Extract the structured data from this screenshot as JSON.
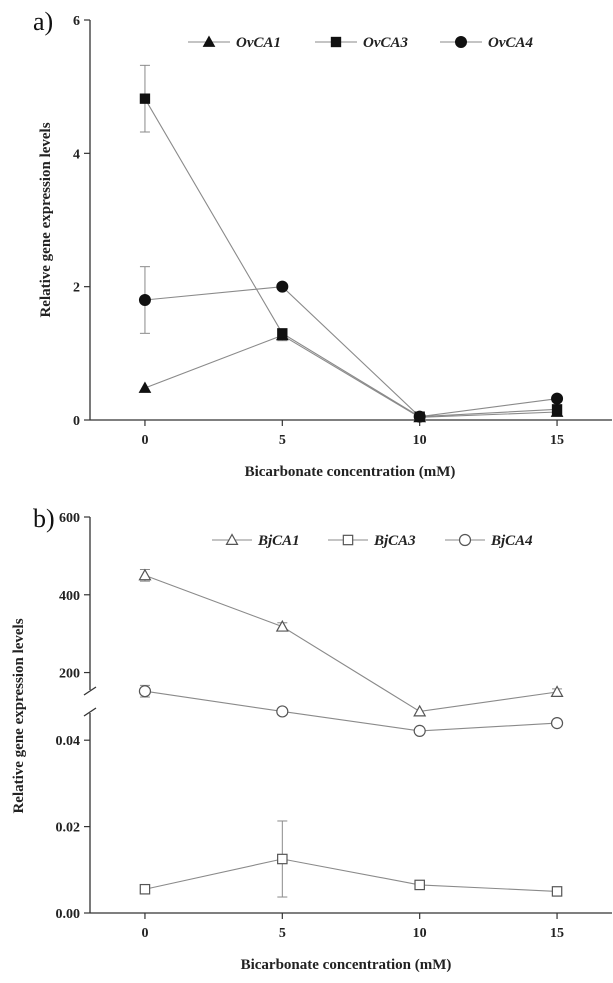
{
  "chart_data": [
    {
      "type": "line",
      "panel_label": "a)",
      "xlabel": "Bicarbonate concentration (mM)",
      "ylabel": "Relative gene expression levels",
      "x": [
        0,
        5,
        10,
        15
      ],
      "x_ticks": [
        0,
        5,
        10,
        15
      ],
      "y_ticks": [
        0,
        2,
        4,
        6
      ],
      "xlim": [
        -2,
        17
      ],
      "ylim": [
        0,
        6
      ],
      "legend_position": "top-right",
      "series": [
        {
          "name": "OvCA1",
          "marker": "filled-triangle",
          "values": [
            0.48,
            1.27,
            0.04,
            0.12
          ],
          "errors": [
            0.02,
            0.08,
            0.01,
            0.02
          ]
        },
        {
          "name": "OvCA3",
          "marker": "filled-square",
          "values": [
            4.82,
            1.3,
            0.05,
            0.16
          ],
          "errors": [
            0.5,
            0.05,
            0.01,
            0.02
          ]
        },
        {
          "name": "OvCA4",
          "marker": "filled-circle",
          "values": [
            1.8,
            2.0,
            0.05,
            0.32
          ],
          "errors": [
            0.5,
            0.03,
            0.01,
            0.02
          ]
        }
      ]
    },
    {
      "type": "line",
      "panel_label": "b)",
      "xlabel": "Bicarbonate concentration (mM)",
      "ylabel": "Relative gene expression levels",
      "x": [
        0,
        5,
        10,
        15
      ],
      "x_ticks": [
        0,
        5,
        10,
        15
      ],
      "y_ticks_upper": [
        200,
        400,
        600
      ],
      "y_ticks_lower": [
        0.0,
        0.02,
        0.04
      ],
      "y_tick_labels_upper": [
        "200",
        "400",
        "600"
      ],
      "y_tick_labels_lower": [
        "0.00",
        "0.02",
        "0.04"
      ],
      "xlim": [
        -2,
        17
      ],
      "ylim_lower": [
        0,
        0.05
      ],
      "ylim_upper": [
        60,
        600
      ],
      "broken_axis": true,
      "legend_position": "top-right",
      "series": [
        {
          "name": "BjCA1",
          "marker": "open-triangle",
          "segment": "upper",
          "values": [
            450,
            318,
            100,
            150
          ],
          "errors": [
            15,
            10,
            5,
            8
          ]
        },
        {
          "name": "BjCA3",
          "marker": "open-square",
          "segment": "lower",
          "values": [
            0.0055,
            0.0125,
            0.0065,
            0.005
          ],
          "errors": [
            0.0003,
            0.0088,
            0.0003,
            0.0003
          ]
        },
        {
          "name": "BjCA4",
          "marker": "open-circle",
          "segment": "upper",
          "values": [
            152,
            100,
            50,
            70
          ],
          "errors": [
            15,
            5,
            3,
            3
          ]
        }
      ]
    }
  ]
}
